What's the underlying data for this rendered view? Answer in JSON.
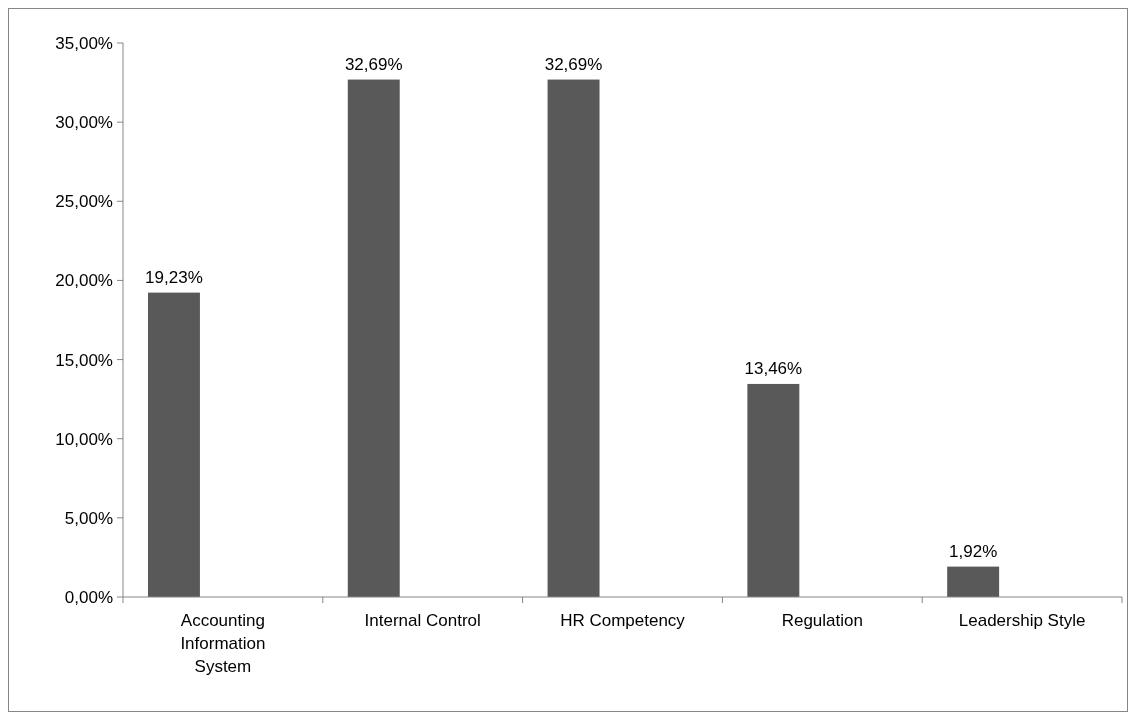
{
  "chart_data": {
    "type": "bar",
    "categories": [
      "Accounting Information System",
      "Internal Control",
      "HR Competency",
      "Regulation",
      "Leadership Style"
    ],
    "values": [
      19.23,
      32.69,
      32.69,
      13.46,
      1.92
    ],
    "value_labels": [
      "19,23%",
      "32,69%",
      "32,69%",
      "13,46%",
      "1,92%"
    ],
    "color": "#595959",
    "ylim": [
      0,
      35
    ],
    "yticks": [
      {
        "value": 0,
        "label": "0,00%"
      },
      {
        "value": 5,
        "label": "5,00%"
      },
      {
        "value": 10,
        "label": "10,00%"
      },
      {
        "value": 15,
        "label": "15,00%"
      },
      {
        "value": 20,
        "label": "20,00%"
      },
      {
        "value": 25,
        "label": "25,00%"
      },
      {
        "value": 30,
        "label": "30,00%"
      },
      {
        "value": 35,
        "label": "35,00%"
      }
    ],
    "grid": false
  }
}
